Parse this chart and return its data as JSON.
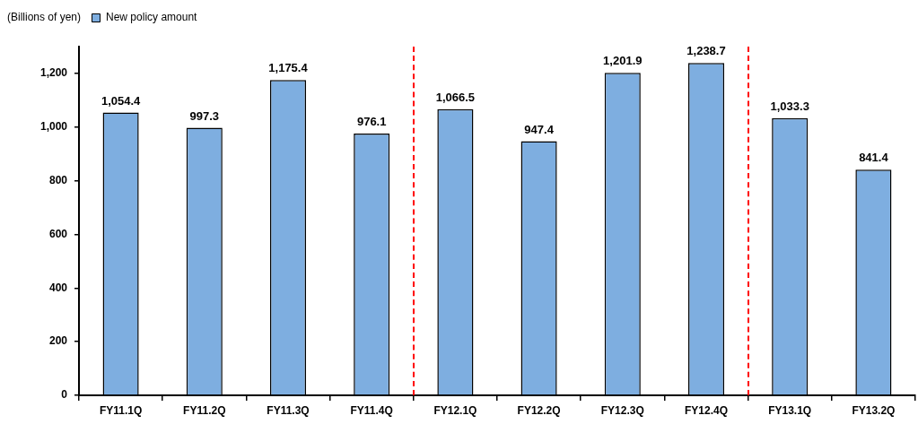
{
  "chart_data": {
    "type": "bar",
    "ylabel": "(Billions of yen)",
    "categories": [
      "FY11.1Q",
      "FY11.2Q",
      "FY11.3Q",
      "FY11.4Q",
      "FY12.1Q",
      "FY12.2Q",
      "FY12.3Q",
      "FY12.4Q",
      "FY13.1Q",
      "FY13.2Q"
    ],
    "series": [
      {
        "name": "New policy amount",
        "color": "#7eaee0",
        "values": [
          1054.4,
          997.3,
          1175.4,
          976.1,
          1066.5,
          947.4,
          1201.9,
          1238.7,
          1033.3,
          841.4
        ],
        "value_labels": [
          "1,054.4",
          "997.3",
          "1,175.4",
          "976.1",
          "1,066.5",
          "947.4",
          "1,201.9",
          "1,238.7",
          "1,033.3",
          "841.4"
        ]
      }
    ],
    "ylim": [
      0,
      1300
    ],
    "yticks": [
      0,
      200,
      400,
      600,
      800,
      {
        "value": 1000,
        "label": "1,000"
      },
      {
        "value": 1200,
        "label": "1,200"
      }
    ],
    "grid": false,
    "legend": "top left"
  }
}
